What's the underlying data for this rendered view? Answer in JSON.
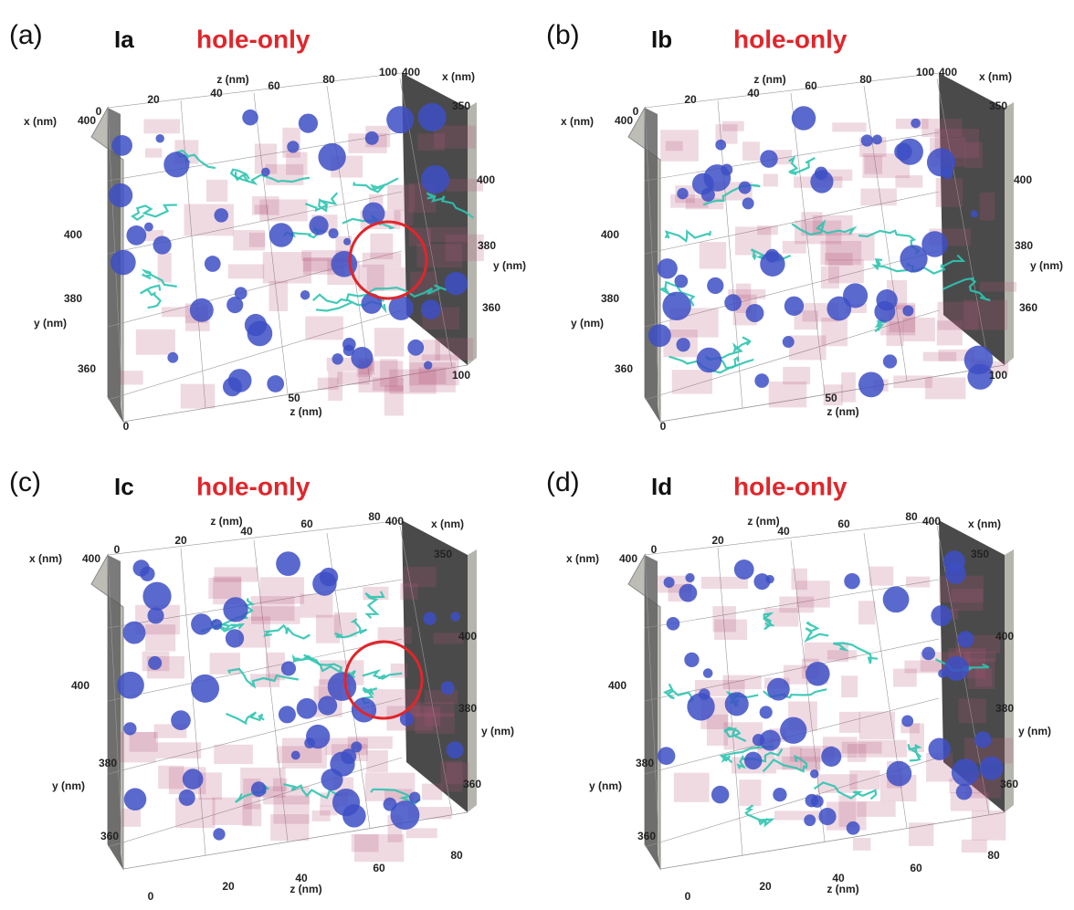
{
  "panels": [
    {
      "letter": "(a)",
      "sample": "Ia",
      "condition": "hole-only",
      "axis_labels": [
        "0",
        "20",
        "40",
        "z (nm)",
        "60",
        "80",
        "100",
        "400",
        "x (nm)",
        "350",
        "x (nm)",
        "400",
        "400",
        "380",
        "y (nm)",
        "360",
        "400",
        "380",
        "y (nm)",
        "360",
        "0",
        "50",
        "z (nm)",
        "100"
      ]
    },
    {
      "letter": "(b)",
      "sample": "Ib",
      "condition": "hole-only",
      "axis_labels": [
        "0",
        "20",
        "40",
        "z (nm)",
        "60",
        "80",
        "100",
        "400",
        "x (nm)",
        "350",
        "x (nm)",
        "400",
        "400",
        "380",
        "y (nm)",
        "360",
        "400",
        "380",
        "y (nm)",
        "360",
        "0",
        "50",
        "z (nm)",
        "100"
      ]
    },
    {
      "letter": "(c)",
      "sample": "Ic",
      "condition": "hole-only",
      "axis_labels": [
        "x (nm)",
        "400",
        "0",
        "20",
        "z (nm)",
        "40",
        "60",
        "80",
        "400",
        "x (nm)",
        "350",
        "400",
        "380",
        "y (nm)",
        "360",
        "400",
        "380",
        "y (nm)",
        "360",
        "0",
        "20",
        "40",
        "z (nm)",
        "60",
        "80"
      ]
    },
    {
      "letter": "(d)",
      "sample": "Id",
      "condition": "hole-only",
      "axis_labels": [
        "x (nm)",
        "400",
        "0",
        "20",
        "z (nm)",
        "40",
        "60",
        "80",
        "400",
        "x (nm)",
        "350",
        "400",
        "380",
        "y (nm)",
        "360",
        "400",
        "380",
        "y (nm)",
        "360",
        "0",
        "20",
        "40",
        "z (nm)",
        "60",
        "80"
      ]
    }
  ]
}
